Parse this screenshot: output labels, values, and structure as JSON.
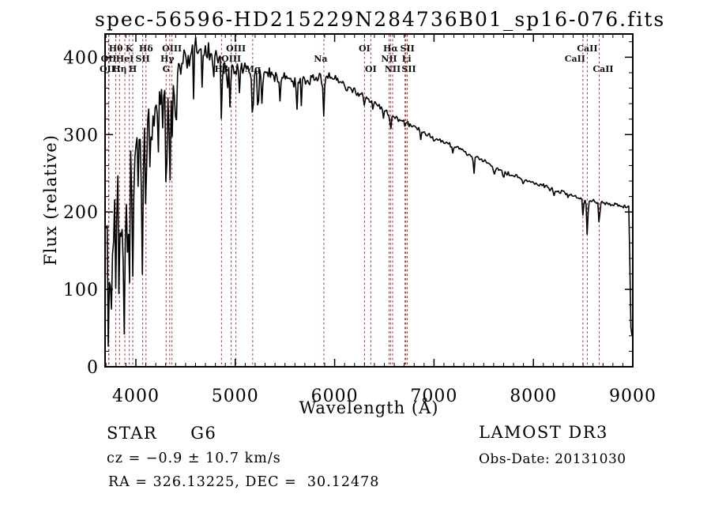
{
  "chart_data": {
    "type": "line",
    "title": "spec-56596-HD215229N284736B01_sp16-076.fits",
    "xlabel": "Wavelength (Å)",
    "ylabel": "Flux (relative)",
    "xlim": [
      3690,
      9000
    ],
    "ylim": [
      0,
      430
    ],
    "x_major_ticks": [
      4000,
      5000,
      6000,
      7000,
      8000,
      9000
    ],
    "x_minor_step": 100,
    "y_major_ticks": [
      0,
      100,
      200,
      300,
      400
    ],
    "y_minor_step": 20,
    "grid": false,
    "background_color": "#ffffff",
    "spectrum_color": "#000000",
    "frame_color": "#000000",
    "line_marker_color": "#993333",
    "line_label_color": "#111111",
    "spectral_lines": [
      {
        "wavelength": 3726.0,
        "label": "OII",
        "row": 2,
        "dx": 0
      },
      {
        "wavelength": 3728.8,
        "label": "OII",
        "row": 3,
        "dx": -2
      },
      {
        "wavelength": 3797.9,
        "label": "Hθ",
        "row": 1,
        "dx": 0
      },
      {
        "wavelength": 3835.4,
        "label": "Hη",
        "row": 3,
        "dx": 0
      },
      {
        "wavelength": 3889.0,
        "label": "HeI",
        "row": 2,
        "dx": 0
      },
      {
        "wavelength": 3933.7,
        "label": "K",
        "row": 1,
        "dx": 0
      },
      {
        "wavelength": 3968.5,
        "label": "H",
        "row": 3,
        "dx": 0
      },
      {
        "wavelength": 4068.6,
        "label": "SII",
        "row": 2,
        "dx": 0
      },
      {
        "wavelength": 4101.7,
        "label": "Hδ",
        "row": 1,
        "dx": 0
      },
      {
        "wavelength": 4304.4,
        "label": "G",
        "row": 3,
        "dx": 0
      },
      {
        "wavelength": 4340.5,
        "label": "Hγ",
        "row": 2,
        "dx": -3
      },
      {
        "wavelength": 4363.2,
        "label": "OIII",
        "row": 1,
        "dx": 0
      },
      {
        "wavelength": 4861.3,
        "label": "Hβ",
        "row": 3,
        "dx": 0
      },
      {
        "wavelength": 4958.9,
        "label": "OIII",
        "row": 2,
        "dx": 0
      },
      {
        "wavelength": 5006.8,
        "label": "OIII",
        "row": 1,
        "dx": 0
      },
      {
        "wavelength": 5175.3,
        "label": "Mg",
        "row": 3,
        "dx": 0
      },
      {
        "wavelength": 5891.6,
        "label": "Na",
        "row": 2,
        "dx": -4
      },
      {
        "wavelength": 6300.3,
        "label": "OI",
        "row": 1,
        "dx": 0
      },
      {
        "wavelength": 6363.8,
        "label": "OI",
        "row": 3,
        "dx": 0
      },
      {
        "wavelength": 6548.1,
        "label": "NII",
        "row": 2,
        "dx": 0
      },
      {
        "wavelength": 6562.8,
        "label": "Hα",
        "row": 1,
        "dx": 0
      },
      {
        "wavelength": 6583.5,
        "label": "NII",
        "row": 3,
        "dx": 0
      },
      {
        "wavelength": 6707.9,
        "label": "Li",
        "row": 2,
        "dx": 2
      },
      {
        "wavelength": 6716.4,
        "label": "SII",
        "row": 1,
        "dx": 2
      },
      {
        "wavelength": 6730.8,
        "label": "SII",
        "row": 3,
        "dx": 2
      },
      {
        "wavelength": 8498.0,
        "label": "CaII",
        "row": 2,
        "dx": -10
      },
      {
        "wavelength": 8542.1,
        "label": "CaII",
        "row": 1,
        "dx": 0
      },
      {
        "wavelength": 8662.1,
        "label": "CaII",
        "row": 3,
        "dx": 5
      }
    ],
    "continuum_points": [
      [
        3690,
        165
      ],
      [
        3710,
        160
      ],
      [
        3730,
        165
      ],
      [
        3750,
        175
      ],
      [
        3770,
        180
      ],
      [
        3800,
        185
      ],
      [
        3830,
        192
      ],
      [
        3860,
        205
      ],
      [
        3890,
        215
      ],
      [
        3920,
        232
      ],
      [
        3950,
        255
      ],
      [
        3970,
        265
      ],
      [
        3990,
        285
      ],
      [
        4010,
        295
      ],
      [
        4040,
        300
      ],
      [
        4070,
        300
      ],
      [
        4100,
        305
      ],
      [
        4130,
        315
      ],
      [
        4160,
        322
      ],
      [
        4200,
        330
      ],
      [
        4250,
        335
      ],
      [
        4300,
        340
      ],
      [
        4340,
        345
      ],
      [
        4380,
        365
      ],
      [
        4420,
        385
      ],
      [
        4460,
        395
      ],
      [
        4500,
        400
      ],
      [
        4550,
        405
      ],
      [
        4600,
        412
      ],
      [
        4650,
        410
      ],
      [
        4700,
        408
      ],
      [
        4750,
        402
      ],
      [
        4800,
        396
      ],
      [
        4861,
        392
      ],
      [
        4900,
        390
      ],
      [
        4950,
        388
      ],
      [
        5000,
        388
      ],
      [
        5050,
        384
      ],
      [
        5100,
        382
      ],
      [
        5150,
        380
      ],
      [
        5200,
        382
      ],
      [
        5250,
        381
      ],
      [
        5300,
        379
      ],
      [
        5350,
        378
      ],
      [
        5400,
        377
      ],
      [
        5450,
        374
      ],
      [
        5500,
        372
      ],
      [
        5550,
        371
      ],
      [
        5600,
        369
      ],
      [
        5650,
        368
      ],
      [
        5700,
        369
      ],
      [
        5750,
        370
      ],
      [
        5800,
        372
      ],
      [
        5850,
        374
      ],
      [
        5891,
        374
      ],
      [
        5930,
        376
      ],
      [
        5970,
        375
      ],
      [
        6000,
        373
      ],
      [
        6050,
        369
      ],
      [
        6100,
        365
      ],
      [
        6150,
        361
      ],
      [
        6200,
        357
      ],
      [
        6250,
        352
      ],
      [
        6300,
        348
      ],
      [
        6350,
        344
      ],
      [
        6400,
        340
      ],
      [
        6450,
        336
      ],
      [
        6500,
        331
      ],
      [
        6550,
        327
      ],
      [
        6600,
        323
      ],
      [
        6650,
        320
      ],
      [
        6700,
        317
      ],
      [
        6750,
        313
      ],
      [
        6800,
        310
      ],
      [
        6850,
        307
      ],
      [
        6900,
        303
      ],
      [
        6950,
        300
      ],
      [
        7000,
        296
      ],
      [
        7050,
        293
      ],
      [
        7100,
        290
      ],
      [
        7150,
        287
      ],
      [
        7200,
        284
      ],
      [
        7250,
        281
      ],
      [
        7300,
        278
      ],
      [
        7350,
        274
      ],
      [
        7400,
        271
      ],
      [
        7450,
        268
      ],
      [
        7500,
        265
      ],
      [
        7550,
        262
      ],
      [
        7600,
        258
      ],
      [
        7650,
        255
      ],
      [
        7700,
        252
      ],
      [
        7750,
        250
      ],
      [
        7800,
        247
      ],
      [
        7850,
        244
      ],
      [
        7900,
        242
      ],
      [
        7950,
        240
      ],
      [
        8000,
        238
      ],
      [
        8050,
        236
      ],
      [
        8100,
        234
      ],
      [
        8150,
        231
      ],
      [
        8200,
        229
      ],
      [
        8250,
        227
      ],
      [
        8300,
        225
      ],
      [
        8350,
        223
      ],
      [
        8400,
        221
      ],
      [
        8450,
        219
      ],
      [
        8500,
        217
      ],
      [
        8550,
        215
      ],
      [
        8600,
        214
      ],
      [
        8650,
        213
      ],
      [
        8700,
        212
      ],
      [
        8750,
        211
      ],
      [
        8800,
        210
      ],
      [
        8850,
        208
      ],
      [
        8900,
        207
      ],
      [
        8950,
        206
      ],
      [
        8962,
        205
      ],
      [
        8968,
        170
      ],
      [
        8974,
        60
      ],
      [
        8985,
        42
      ],
      [
        9000,
        38
      ]
    ],
    "absorption_features": [
      [
        3727,
        110,
        6
      ],
      [
        3750,
        90,
        5
      ],
      [
        3798,
        100,
        5
      ],
      [
        3835,
        115,
        5
      ],
      [
        3870,
        90,
        5
      ],
      [
        3889,
        100,
        5
      ],
      [
        3934,
        185,
        6
      ],
      [
        3970,
        140,
        6
      ],
      [
        4026,
        60,
        5
      ],
      [
        4068,
        200,
        5
      ],
      [
        4102,
        130,
        6
      ],
      [
        4144,
        40,
        5
      ],
      [
        4226,
        70,
        5
      ],
      [
        4305,
        120,
        6
      ],
      [
        4340,
        150,
        5
      ],
      [
        4363,
        40,
        5
      ],
      [
        4405,
        50,
        5
      ],
      [
        4520,
        45,
        4
      ],
      [
        4580,
        55,
        4
      ],
      [
        4668,
        40,
        4
      ],
      [
        4780,
        40,
        4
      ],
      [
        4861,
        70,
        5
      ],
      [
        4920,
        50,
        4
      ],
      [
        4950,
        85,
        4
      ],
      [
        5040,
        40,
        4
      ],
      [
        5175,
        65,
        9
      ],
      [
        5230,
        85,
        4
      ],
      [
        5270,
        50,
        5
      ],
      [
        5450,
        30,
        5
      ],
      [
        5620,
        35,
        6
      ],
      [
        5665,
        30,
        5
      ],
      [
        5891,
        55,
        6
      ],
      [
        6122,
        15,
        5
      ],
      [
        6300,
        13,
        5
      ],
      [
        6380,
        10,
        4
      ],
      [
        6495,
        12,
        4
      ],
      [
        6563,
        24,
        5
      ],
      [
        6710,
        12,
        4
      ],
      [
        6867,
        11,
        7
      ],
      [
        7000,
        8,
        5
      ],
      [
        7190,
        10,
        4
      ],
      [
        7400,
        24,
        4
      ],
      [
        7605,
        9,
        11
      ],
      [
        7700,
        7,
        5
      ],
      [
        7900,
        6,
        5
      ],
      [
        8205,
        8,
        5
      ],
      [
        8350,
        7,
        5
      ],
      [
        8498,
        21,
        6
      ],
      [
        8542,
        45,
        6
      ],
      [
        8662,
        30,
        6
      ]
    ],
    "noise_profile": [
      [
        3990,
        62
      ],
      [
        4150,
        40
      ],
      [
        4400,
        30
      ],
      [
        4900,
        17
      ],
      [
        5400,
        11
      ],
      [
        5900,
        8
      ],
      [
        6600,
        5
      ],
      [
        7600,
        3.5
      ],
      [
        9010,
        3
      ]
    ]
  },
  "annotations": {
    "object_class": "STAR",
    "subclass": "G6",
    "redshift": "cz = −0.9 ± 10.7 km/s",
    "coordinates": "RA = 326.13225, DEC =  30.12478",
    "survey": "LAMOST DR3",
    "obs_date": "Obs-Date: 20131030"
  }
}
